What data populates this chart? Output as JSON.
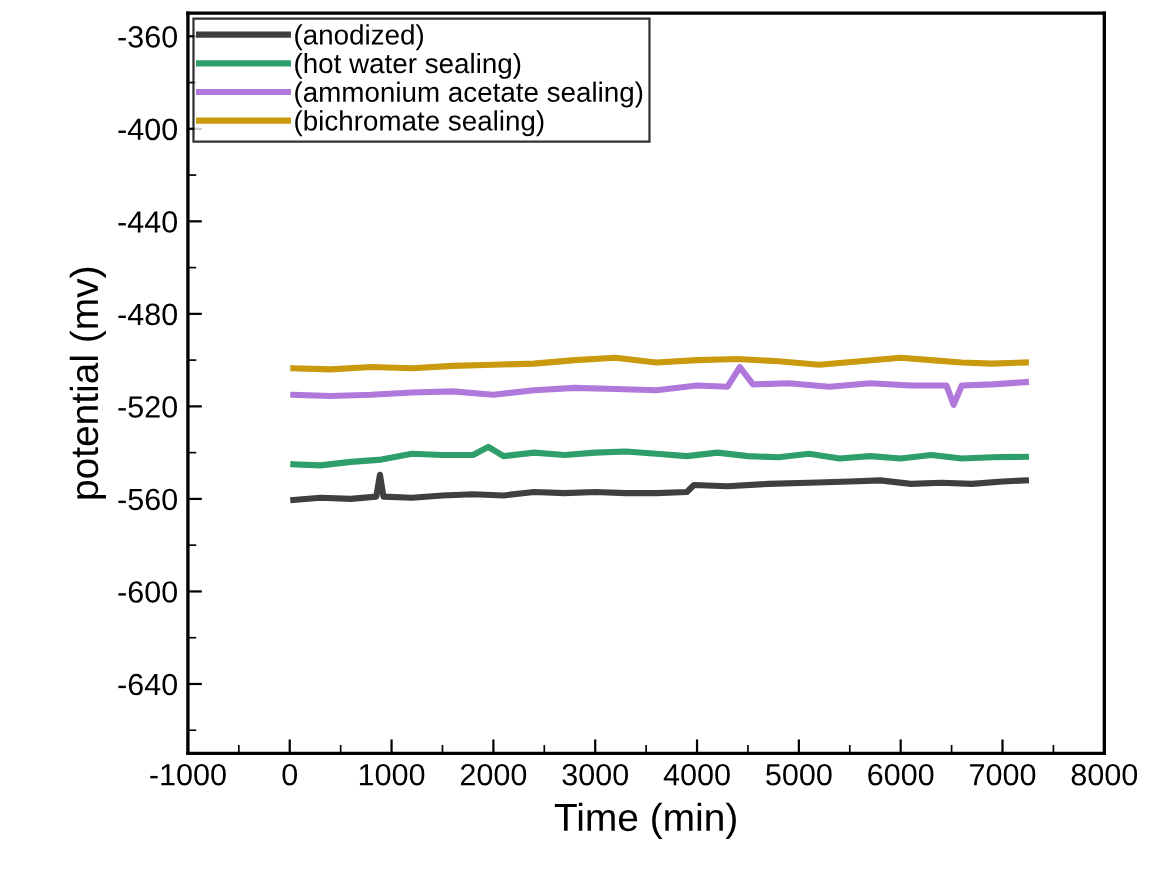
{
  "chart_data": {
    "type": "line",
    "xlabel": "Time (min)",
    "ylabel": "potential (mv)",
    "xlim": [
      -1000,
      8000
    ],
    "xticks": [
      -1000,
      0,
      1000,
      2000,
      3000,
      4000,
      5000,
      6000,
      7000,
      8000
    ],
    "ylim": [
      -670,
      -350
    ],
    "yticks": [
      -360,
      -400,
      -440,
      -480,
      -520,
      -560,
      -600,
      -640
    ],
    "grid": false,
    "legend": "top left",
    "marker": "none",
    "line_style": "solid",
    "series": [
      {
        "name": "(anodized)",
        "color": "#3f3f3f",
        "x": [
          35,
          300,
          600,
          850,
          886,
          920,
          1200,
          1500,
          1800,
          2100,
          2400,
          2700,
          3000,
          3300,
          3600,
          3900,
          3970,
          4300,
          4700,
          5100,
          5500,
          5800,
          6100,
          6400,
          6700,
          7000,
          7230
        ],
        "values": [
          -560.5,
          -559.5,
          -560,
          -559,
          -549.6,
          -559,
          -559.5,
          -558.5,
          -558,
          -558.5,
          -557,
          -557.5,
          -557,
          -557.5,
          -557.5,
          -557,
          -554,
          -554.5,
          -553.5,
          -553,
          -552.5,
          -552,
          -553.5,
          -553,
          -553.5,
          -552.5,
          -552
        ]
      },
      {
        "name": "(hot water sealing)",
        "color": "#2e9e6b",
        "x": [
          35,
          300,
          600,
          900,
          1200,
          1500,
          1800,
          1950,
          2100,
          2400,
          2700,
          3000,
          3300,
          3600,
          3900,
          4200,
          4500,
          4800,
          5100,
          5400,
          5700,
          6000,
          6300,
          6600,
          6900,
          7230
        ],
        "values": [
          -545,
          -545.5,
          -544,
          -543,
          -540.5,
          -541,
          -541,
          -537.5,
          -541.5,
          -540,
          -541,
          -540,
          -539.5,
          -540.5,
          -541.5,
          -540,
          -541.5,
          -542,
          -540.5,
          -542.5,
          -541.5,
          -542.5,
          -541,
          -542.5,
          -542,
          -541.8
        ]
      },
      {
        "name": "(ammonium acetate sealing)",
        "color": "#b178dc",
        "x": [
          35,
          400,
          800,
          1200,
          1600,
          2000,
          2400,
          2800,
          3200,
          3600,
          4000,
          4300,
          4420,
          4550,
          4900,
          5300,
          5700,
          6100,
          6450,
          6520,
          6600,
          6900,
          7230
        ],
        "values": [
          -515,
          -515.5,
          -515,
          -514,
          -513.5,
          -515,
          -513,
          -512,
          -512.5,
          -513,
          -511,
          -511.5,
          -503,
          -510.5,
          -510,
          -511.5,
          -510,
          -511,
          -511,
          -519.3,
          -511,
          -510.5,
          -509.5
        ]
      },
      {
        "name": "(bichromate sealing)",
        "color": "#c99a0e",
        "x": [
          35,
          400,
          800,
          1200,
          1600,
          2000,
          2400,
          2800,
          3200,
          3600,
          4000,
          4400,
          4800,
          5200,
          5600,
          6000,
          6300,
          6600,
          6900,
          7230
        ],
        "values": [
          -503.5,
          -504,
          -503,
          -503.5,
          -502.5,
          -502,
          -501.5,
          -500,
          -499,
          -501,
          -500,
          -499.5,
          -500.5,
          -502,
          -500.5,
          -499,
          -500,
          -501,
          -501.5,
          -501
        ]
      }
    ]
  }
}
